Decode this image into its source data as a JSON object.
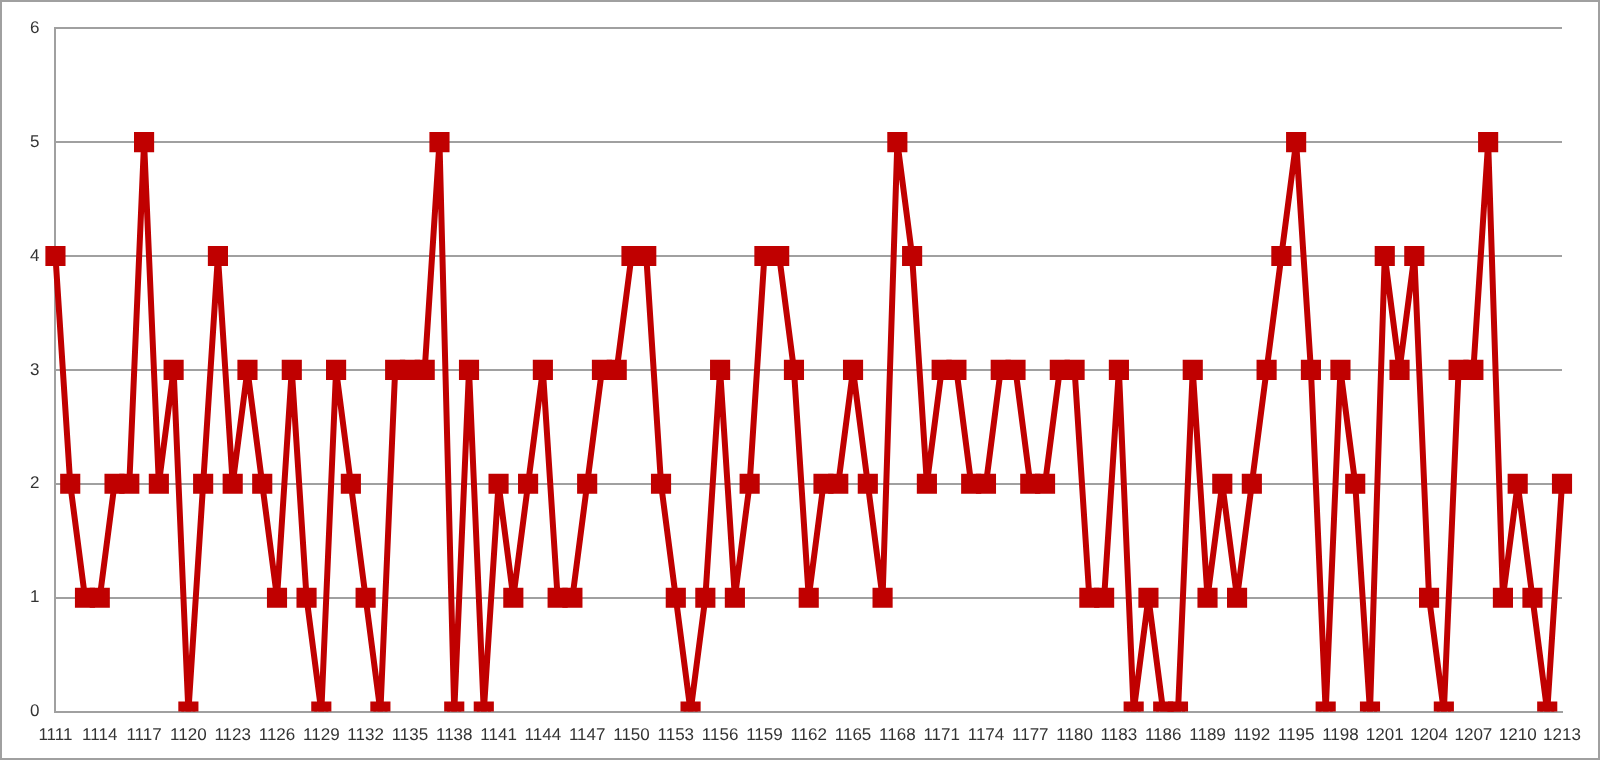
{
  "chart_data": {
    "type": "line",
    "categories": [
      "1111",
      null,
      null,
      "1114",
      null,
      null,
      "1117",
      null,
      null,
      "1120",
      null,
      null,
      "1123",
      null,
      null,
      "1126",
      null,
      null,
      "1129",
      null,
      null,
      "1132",
      null,
      null,
      "1135",
      null,
      null,
      "1138",
      null,
      null,
      "1141",
      null,
      null,
      "1144",
      null,
      null,
      "1147",
      null,
      null,
      "1150",
      null,
      null,
      "1153",
      null,
      null,
      "1156",
      null,
      null,
      "1159",
      null,
      null,
      "1162",
      null,
      null,
      "1165",
      null,
      null,
      "1168",
      null,
      null,
      "1171",
      null,
      null,
      "1174",
      null,
      null,
      "1177",
      null,
      null,
      "1180",
      null,
      null,
      "1183",
      null,
      null,
      "1186",
      null,
      null,
      "1189",
      null,
      null,
      "1192",
      null,
      null,
      "1195",
      null,
      null,
      "1198",
      null,
      null,
      "1201",
      null,
      null,
      "1204",
      null,
      null,
      "1207",
      null,
      null,
      "1210",
      null,
      null,
      "1213"
    ],
    "series": [
      {
        "color": "#c00000",
        "values": [
          4,
          2,
          1,
          1,
          2,
          2,
          5,
          2,
          3,
          0,
          2,
          4,
          2,
          3,
          2,
          1,
          3,
          1,
          0,
          3,
          2,
          1,
          0,
          3,
          3,
          3,
          5,
          0,
          3,
          0,
          2,
          1,
          2,
          3,
          1,
          1,
          2,
          3,
          3,
          4,
          4,
          2,
          1,
          0,
          1,
          3,
          1,
          2,
          4,
          4,
          3,
          1,
          2,
          2,
          3,
          2,
          1,
          5,
          4,
          2,
          3,
          3,
          2,
          2,
          3,
          3,
          2,
          2,
          3,
          3,
          1,
          1,
          3,
          0,
          1,
          0,
          0,
          3,
          1,
          2,
          1,
          2,
          3,
          4,
          5,
          3,
          0,
          3,
          2,
          0,
          4,
          3,
          4,
          1,
          0,
          3,
          3,
          5,
          1,
          2,
          1,
          0,
          2
        ]
      }
    ],
    "ylim": [
      0,
      6
    ],
    "yticks": [
      0,
      1,
      2,
      3,
      4,
      5,
      6
    ],
    "grid": "y",
    "legend": false,
    "marker": "square",
    "line_style": "solid"
  }
}
